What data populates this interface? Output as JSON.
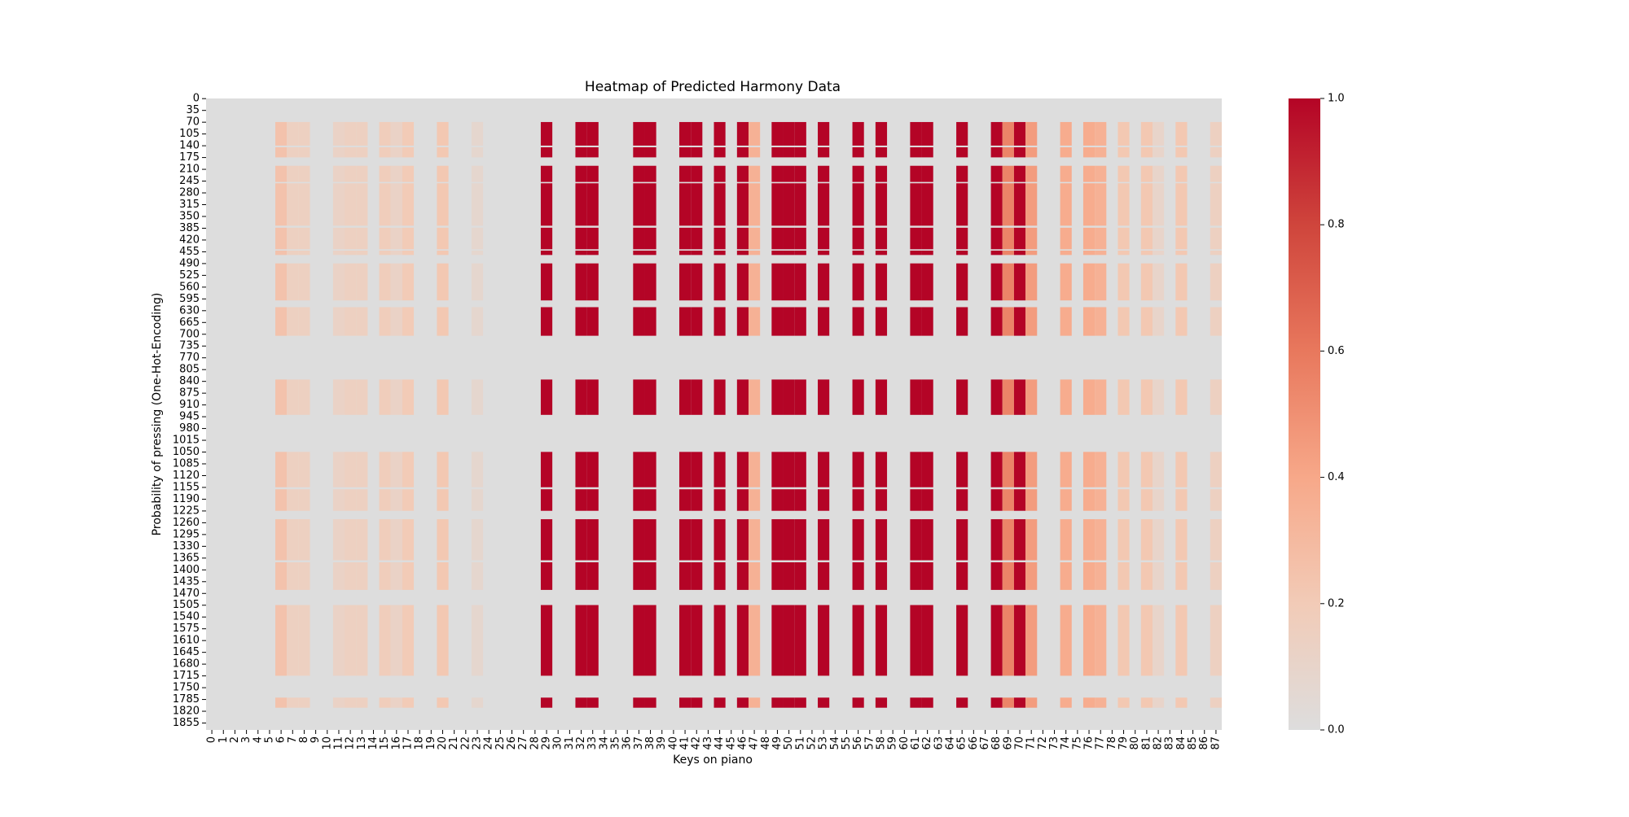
{
  "chart_data": {
    "type": "heatmap",
    "title": "Heatmap of Predicted Harmony Data",
    "xlabel": "Keys on piano",
    "ylabel": "Probability of pressing (One-Hot-Encoding)",
    "x_tick_labels": [
      "0",
      "1",
      "2",
      "3",
      "4",
      "5",
      "6",
      "7",
      "8",
      "9",
      "10",
      "11",
      "12",
      "13",
      "14",
      "15",
      "16",
      "17",
      "18",
      "19",
      "20",
      "21",
      "22",
      "23",
      "24",
      "25",
      "26",
      "27",
      "28",
      "29",
      "30",
      "31",
      "32",
      "33",
      "34",
      "35",
      "36",
      "37",
      "38",
      "39",
      "40",
      "41",
      "42",
      "43",
      "44",
      "45",
      "46",
      "47",
      "48",
      "49",
      "50",
      "51",
      "52",
      "53",
      "54",
      "55",
      "56",
      "57",
      "58",
      "59",
      "60",
      "61",
      "62",
      "63",
      "64",
      "65",
      "66",
      "67",
      "68",
      "69",
      "70",
      "71",
      "72",
      "73",
      "74",
      "75",
      "76",
      "77",
      "78",
      "79",
      "80",
      "81",
      "82",
      "83",
      "84",
      "85",
      "86",
      "87"
    ],
    "y_tick_labels": [
      "0",
      "35",
      "70",
      "105",
      "140",
      "175",
      "210",
      "245",
      "280",
      "315",
      "350",
      "385",
      "420",
      "455",
      "490",
      "525",
      "560",
      "595",
      "630",
      "665",
      "700",
      "735",
      "770",
      "805",
      "840",
      "875",
      "910",
      "945",
      "980",
      "1015",
      "1050",
      "1085",
      "1120",
      "1155",
      "1190",
      "1225",
      "1260",
      "1295",
      "1330",
      "1365",
      "1400",
      "1435",
      "1470",
      "1505",
      "1540",
      "1575",
      "1610",
      "1645",
      "1680",
      "1715",
      "1750",
      "1785",
      "1820",
      "1855"
    ],
    "n_keys": 88,
    "n_rows": 1876,
    "colorbar": {
      "min": 0.0,
      "max": 1.0,
      "ticks": [
        "0.0",
        "0.2",
        "0.4",
        "0.6",
        "0.8",
        "1.0"
      ],
      "colormap": "coolwarm (upper half)",
      "colors": [
        "#dddddd",
        "#f2cbb7",
        "#f7a889",
        "#e8785d",
        "#cf453c",
        "#b40426"
      ]
    },
    "column_levels": {
      "6": 0.25,
      "7": 0.15,
      "8": 0.15,
      "11": 0.12,
      "12": 0.15,
      "13": 0.15,
      "15": 0.18,
      "16": 0.12,
      "17": 0.2,
      "20": 0.22,
      "23": 0.08,
      "29": 1.0,
      "32": 1.0,
      "33": 1.0,
      "37": 1.0,
      "38": 1.0,
      "41": 1.0,
      "42": 1.0,
      "44": 1.0,
      "46": 1.0,
      "47": 0.35,
      "49": 1.0,
      "50": 1.0,
      "51": 1.0,
      "53": 1.0,
      "56": 1.0,
      "58": 1.0,
      "61": 1.0,
      "62": 1.0,
      "65": 1.0,
      "68": 1.0,
      "69": 0.55,
      "70": 1.0,
      "71": 0.45,
      "74": 0.38,
      "76": 0.38,
      "77": 0.35,
      "79": 0.22,
      "81": 0.22,
      "82": 0.1,
      "84": 0.22,
      "87": 0.15
    },
    "active_row_ranges": [
      [
        70,
        175
      ],
      [
        200,
        465
      ],
      [
        490,
        600
      ],
      [
        620,
        705
      ],
      [
        835,
        940
      ],
      [
        1050,
        1225
      ],
      [
        1250,
        1460
      ],
      [
        1505,
        1715
      ],
      [
        1780,
        1810
      ]
    ],
    "gap_row_ranges": [
      [
        140,
        145
      ],
      [
        248,
        252
      ],
      [
        378,
        384
      ],
      [
        448,
        452
      ],
      [
        1155,
        1161
      ],
      [
        1372,
        1378
      ]
    ]
  }
}
